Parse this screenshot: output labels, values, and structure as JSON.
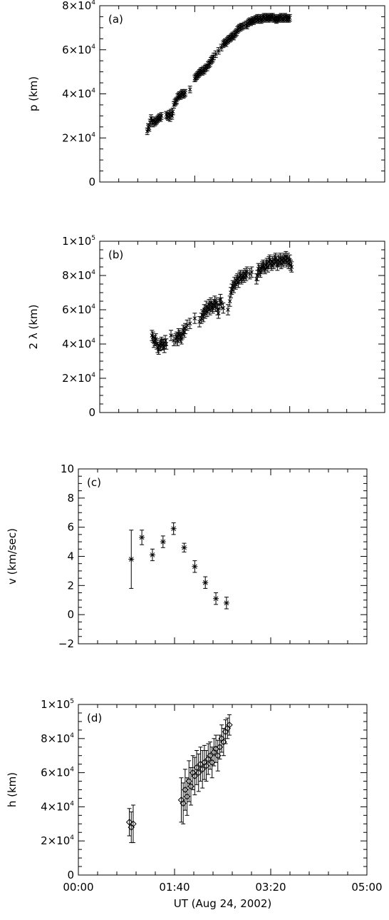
{
  "chart_data": [
    {
      "type": "scatter",
      "panel_label": "(a)",
      "ylabel": "p (km)",
      "ylim": [
        0,
        80000
      ],
      "yticks": [
        {
          "v": 0,
          "label": "0",
          "exp": ""
        },
        {
          "v": 20000,
          "label": "2×10",
          "exp": "4"
        },
        {
          "v": 40000,
          "label": "4×10",
          "exp": "4"
        },
        {
          "v": 60000,
          "label": "6×10",
          "exp": "4"
        },
        {
          "v": 80000,
          "label": "8×10",
          "exp": "4"
        }
      ],
      "marker": "x",
      "x": [
        50,
        51,
        52,
        53,
        54,
        55,
        56,
        57,
        58,
        59,
        60,
        61,
        62,
        63,
        64,
        65,
        70,
        71,
        72,
        73,
        74,
        75,
        76,
        77,
        78,
        79,
        80,
        81,
        82,
        83,
        84,
        85,
        86,
        87,
        88,
        89,
        90,
        95,
        100,
        101,
        102,
        103,
        104,
        105,
        106,
        107,
        108,
        109,
        110,
        111,
        112,
        113,
        114,
        115,
        116,
        117,
        118,
        119,
        120,
        122,
        125,
        128,
        130,
        131,
        132,
        133,
        134,
        135,
        136,
        137,
        138,
        139,
        140,
        141,
        142,
        143,
        144,
        145,
        146,
        147,
        148,
        149,
        150,
        152,
        154,
        155,
        156,
        157,
        158,
        159,
        160,
        161,
        162,
        163,
        164,
        165,
        166,
        167,
        168,
        169,
        170,
        171,
        172,
        173,
        174,
        175,
        176,
        177,
        178,
        179,
        180,
        181,
        182,
        183,
        184,
        185,
        186,
        187,
        188,
        189,
        190,
        191,
        192,
        193,
        194,
        195,
        196,
        197,
        198,
        199,
        200
      ],
      "y": [
        23000,
        25000,
        24500,
        27000,
        29000,
        28000,
        26500,
        28000,
        27000,
        27500,
        28000,
        28500,
        29000,
        29500,
        29000,
        30000,
        30500,
        30000,
        29500,
        31000,
        29000,
        31500,
        30000,
        32000,
        35000,
        36000,
        36500,
        37000,
        38500,
        39000,
        39500,
        39000,
        40000,
        40500,
        39500,
        40000,
        40500,
        42000,
        47000,
        47500,
        48000,
        48500,
        49000,
        49500,
        50000,
        50500,
        50000,
        51000,
        50500,
        51500,
        52000,
        52000,
        53000,
        53500,
        54000,
        55000,
        55500,
        56000,
        57000,
        58000,
        59500,
        61000,
        62500,
        63000,
        63500,
        63000,
        64000,
        64500,
        65000,
        65000,
        65500,
        66000,
        66500,
        66000,
        67000,
        67500,
        68000,
        69000,
        69500,
        70000,
        70000,
        70500,
        70500,
        71000,
        71500,
        71000,
        72000,
        72500,
        73000,
        72500,
        73000,
        73500,
        73000,
        73500,
        74000,
        74000,
        74500,
        73500,
        74000,
        74500,
        73500,
        74000,
        74500,
        75000,
        74000,
        74500,
        75000,
        74500,
        74000,
        74500,
        75000,
        74500,
        75000,
        74000,
        74500,
        74000,
        73500,
        74000,
        74500,
        74000,
        74500,
        75000,
        74000,
        74500,
        74000,
        75000,
        74500,
        74000,
        74500,
        74000,
        74500
      ],
      "err": 1500
    },
    {
      "type": "scatter",
      "panel_label": "(b)",
      "ylabel": "2 λ  (km)",
      "ylim": [
        0,
        100000
      ],
      "yticks": [
        {
          "v": 0,
          "label": "0",
          "exp": ""
        },
        {
          "v": 20000,
          "label": "2×10",
          "exp": "4"
        },
        {
          "v": 40000,
          "label": "4×10",
          "exp": "4"
        },
        {
          "v": 60000,
          "label": "6×10",
          "exp": "4"
        },
        {
          "v": 80000,
          "label": "8×10",
          "exp": "4"
        },
        {
          "v": 100000,
          "label": "1×10",
          "exp": "5"
        }
      ],
      "marker": "x",
      "x": [
        55,
        56,
        57,
        58,
        59,
        60,
        61,
        62,
        63,
        64,
        65,
        66,
        67,
        68,
        69,
        70,
        75,
        78,
        80,
        81,
        82,
        83,
        84,
        85,
        86,
        87,
        88,
        89,
        90,
        92,
        95,
        100,
        105,
        107,
        108,
        109,
        110,
        111,
        112,
        113,
        114,
        115,
        116,
        117,
        118,
        119,
        120,
        121,
        122,
        123,
        124,
        125,
        126,
        127,
        128,
        130,
        135,
        137,
        138,
        139,
        140,
        141,
        142,
        143,
        144,
        145,
        146,
        147,
        148,
        149,
        150,
        151,
        152,
        153,
        154,
        155,
        158,
        160,
        165,
        166,
        167,
        168,
        169,
        170,
        171,
        172,
        173,
        174,
        175,
        176,
        177,
        178,
        179,
        180,
        181,
        182,
        183,
        184,
        185,
        186,
        187,
        188,
        189,
        190,
        191,
        192,
        193,
        194,
        195,
        196,
        197,
        198,
        199,
        200,
        201,
        202
      ],
      "y": [
        45000,
        44000,
        41000,
        42000,
        43000,
        40000,
        38000,
        37000,
        39000,
        40000,
        41000,
        39500,
        40000,
        38000,
        42000,
        40000,
        45000,
        42000,
        43000,
        44000,
        42000,
        46000,
        45000,
        44000,
        43000,
        46000,
        48000,
        47000,
        49000,
        51000,
        52000,
        55000,
        53000,
        55000,
        57000,
        56000,
        60000,
        58000,
        62000,
        59000,
        61000,
        63000,
        60000,
        64000,
        62000,
        61000,
        63000,
        65000,
        62000,
        64000,
        60000,
        58000,
        63000,
        66000,
        64000,
        61000,
        60000,
        65000,
        70000,
        72000,
        74000,
        73000,
        76000,
        75000,
        77000,
        78000,
        76000,
        79000,
        80000,
        78000,
        79000,
        80000,
        79000,
        81000,
        80000,
        82000,
        81000,
        82000,
        78000,
        80000,
        84000,
        83000,
        82000,
        84000,
        85000,
        86000,
        85000,
        84000,
        86000,
        87000,
        85000,
        88000,
        89000,
        87000,
        86000,
        88000,
        87000,
        89000,
        90000,
        88000,
        86000,
        89000,
        88000,
        90000,
        87000,
        89000,
        88000,
        90000,
        89000,
        91000,
        88000,
        90000,
        87000,
        89000,
        86000,
        85000
      ],
      "err": 3000
    },
    {
      "type": "scatter",
      "panel_label": "(c)",
      "ylabel": "v (km/sec)",
      "ylim": [
        -2,
        10
      ],
      "yticks": [
        {
          "v": -2,
          "label": "−2",
          "exp": ""
        },
        {
          "v": 0,
          "label": "0",
          "exp": ""
        },
        {
          "v": 2,
          "label": "2",
          "exp": ""
        },
        {
          "v": 4,
          "label": "4",
          "exp": ""
        },
        {
          "v": 6,
          "label": "6",
          "exp": ""
        },
        {
          "v": 8,
          "label": "8",
          "exp": ""
        },
        {
          "v": 10,
          "label": "10",
          "exp": ""
        }
      ],
      "marker": "star",
      "x": [
        55,
        66,
        77,
        88,
        99,
        110,
        121,
        132,
        143,
        154,
        165
      ],
      "y": [
        3.8,
        5.3,
        4.1,
        5.0,
        5.9,
        4.6,
        3.3,
        2.2,
        1.1,
        0.8,
        null
      ],
      "yerr": [
        2.0,
        0.5,
        0.4,
        0.4,
        0.4,
        0.3,
        0.4,
        0.4,
        0.4,
        0.4,
        0
      ]
    },
    {
      "type": "scatter",
      "panel_label": "(d)",
      "ylabel": "h (km)",
      "xlabel": "UT (Aug 24, 2002)",
      "ylim": [
        0,
        100000
      ],
      "xlim": [
        0,
        300
      ],
      "xticks": [
        {
          "v": 0,
          "label": "00:00"
        },
        {
          "v": 100,
          "label": "01:40"
        },
        {
          "v": 200,
          "label": "03:20"
        },
        {
          "v": 300,
          "label": "05:00"
        }
      ],
      "yticks": [
        {
          "v": 0,
          "label": "0",
          "exp": ""
        },
        {
          "v": 20000,
          "label": "2×10",
          "exp": "4"
        },
        {
          "v": 40000,
          "label": "4×10",
          "exp": "4"
        },
        {
          "v": 60000,
          "label": "6×10",
          "exp": "4"
        },
        {
          "v": 80000,
          "label": "8×10",
          "exp": "4"
        },
        {
          "v": 100000,
          "label": "1×10",
          "exp": "5"
        }
      ],
      "marker": "diamond",
      "x": [
        53,
        55,
        57,
        107,
        109,
        111,
        113,
        115,
        117,
        119,
        121,
        123,
        125,
        127,
        129,
        131,
        133,
        135,
        137,
        139,
        141,
        143,
        145,
        147,
        149,
        151,
        153,
        155,
        157
      ],
      "y": [
        31000,
        28000,
        30000,
        44000,
        42000,
        50000,
        46000,
        55000,
        52000,
        60000,
        58000,
        63000,
        60000,
        65000,
        62000,
        66000,
        64000,
        68000,
        70000,
        66000,
        72000,
        74000,
        70000,
        75000,
        80000,
        78000,
        84000,
        86000,
        88000
      ],
      "yerr": [
        8000,
        9000,
        11000,
        13000,
        12000,
        12000,
        11000,
        12000,
        11000,
        10000,
        11000,
        10000,
        11000,
        10000,
        11000,
        10000,
        9000,
        9000,
        8000,
        9000,
        8000,
        8000,
        9000,
        7000,
        8000,
        8000,
        7000,
        6000,
        6000
      ]
    }
  ]
}
